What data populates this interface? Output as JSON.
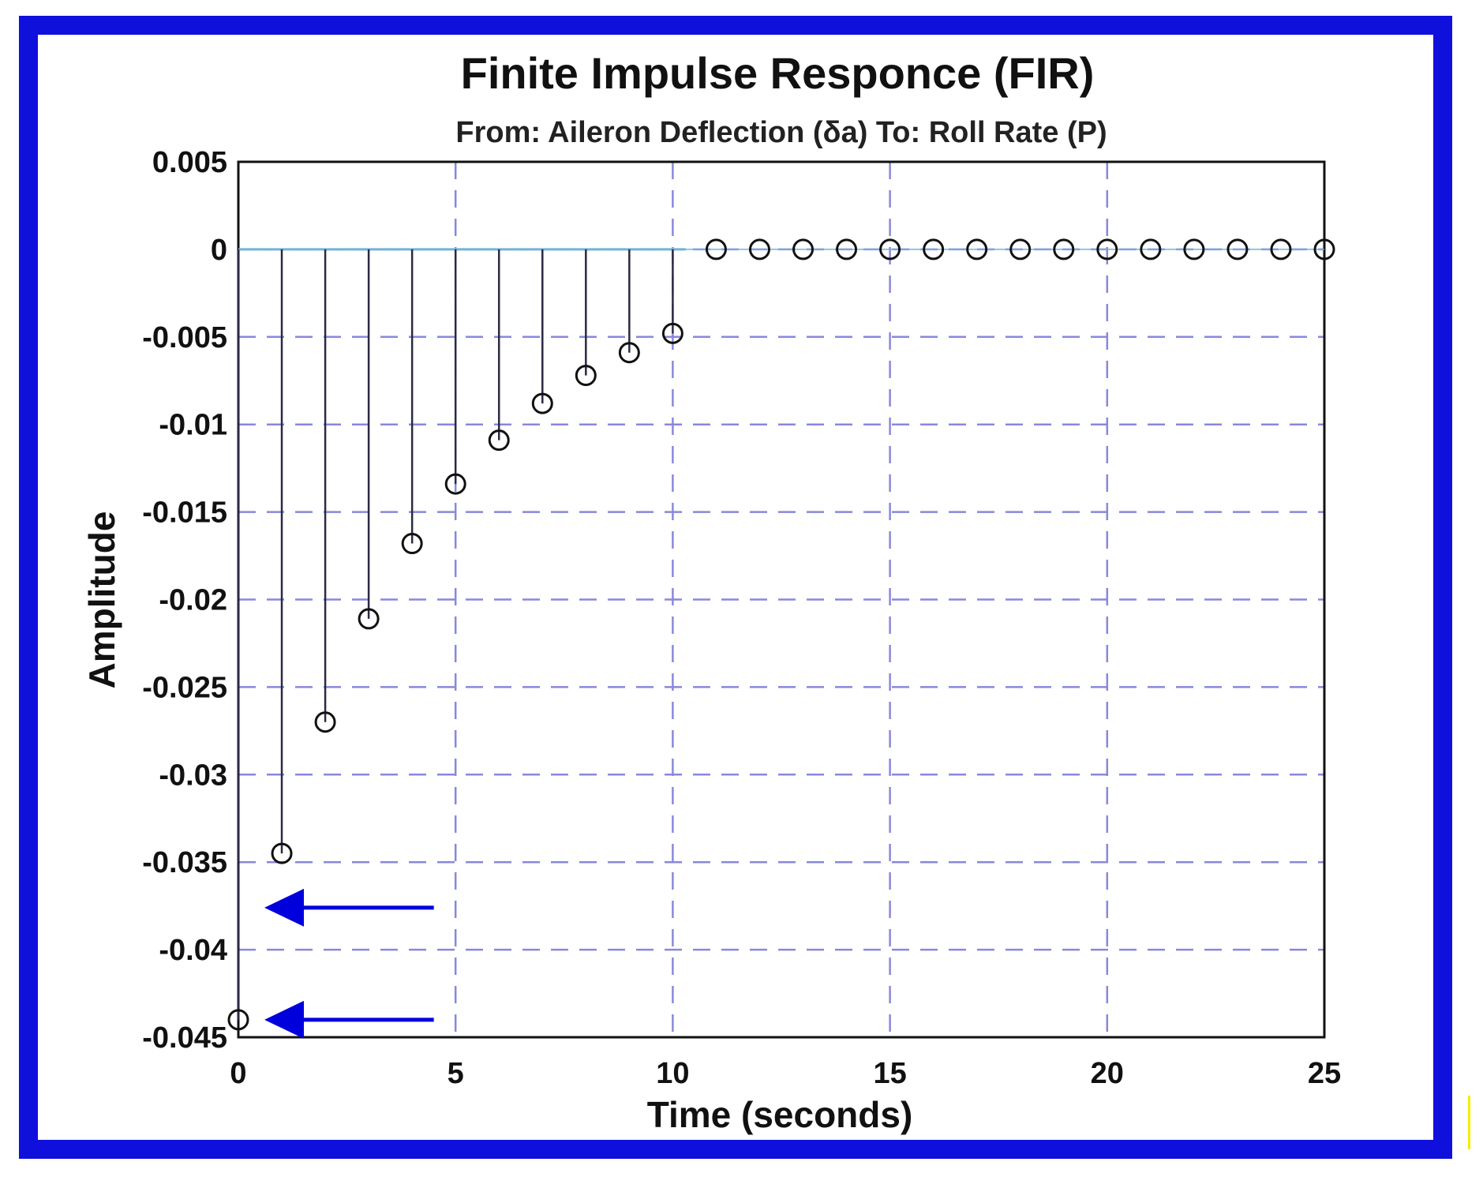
{
  "chart_data": {
    "type": "stem",
    "title": "Finite Impulse Responce (FIR)",
    "subtitle": "From: Aileron Deflection (δa)  To: Roll Rate (P)",
    "xlabel": "Time (seconds)",
    "ylabel": "Amplitude",
    "xlim": [
      0,
      25
    ],
    "ylim": [
      -0.045,
      0.005
    ],
    "xticks": [
      0,
      5,
      10,
      15,
      20,
      25
    ],
    "xtick_labels": [
      "0",
      "5",
      "10",
      "15",
      "20",
      "25"
    ],
    "yticks": [
      0.005,
      0,
      -0.005,
      -0.01,
      -0.015,
      -0.02,
      -0.025,
      -0.03,
      -0.035,
      -0.04,
      -0.045
    ],
    "ytick_labels": [
      "0.005",
      "0",
      "-0.005",
      "-0.01",
      "-0.015",
      "-0.02",
      "-0.025",
      "-0.03",
      "-0.035",
      "-0.04",
      "-0.045"
    ],
    "grid": true,
    "x": [
      0,
      1,
      2,
      3,
      4,
      5,
      6,
      7,
      8,
      9,
      10,
      11,
      12,
      13,
      14,
      15,
      16,
      17,
      18,
      19,
      20,
      21,
      22,
      23,
      24,
      25
    ],
    "values": [
      -0.044,
      -0.0345,
      -0.027,
      -0.0211,
      -0.0168,
      -0.0134,
      -0.0109,
      -0.0088,
      -0.0072,
      -0.0059,
      -0.0048,
      0,
      0,
      0,
      0,
      0,
      0,
      0,
      0,
      0,
      0,
      0,
      0,
      0,
      0,
      0
    ],
    "annotations": [
      {
        "type": "arrow",
        "y": -0.0376,
        "from_x": 4.5,
        "to_x": 0.6,
        "color": "#0000dd"
      },
      {
        "type": "arrow",
        "y": -0.044,
        "from_x": 4.5,
        "to_x": 0.6,
        "color": "#0000dd"
      }
    ],
    "colors": {
      "frame": "#1010dd",
      "grid": "#8888dd",
      "stem": "#2a2a44",
      "zero_line": "#6fb3d8",
      "arrow": "#0000dd"
    }
  }
}
